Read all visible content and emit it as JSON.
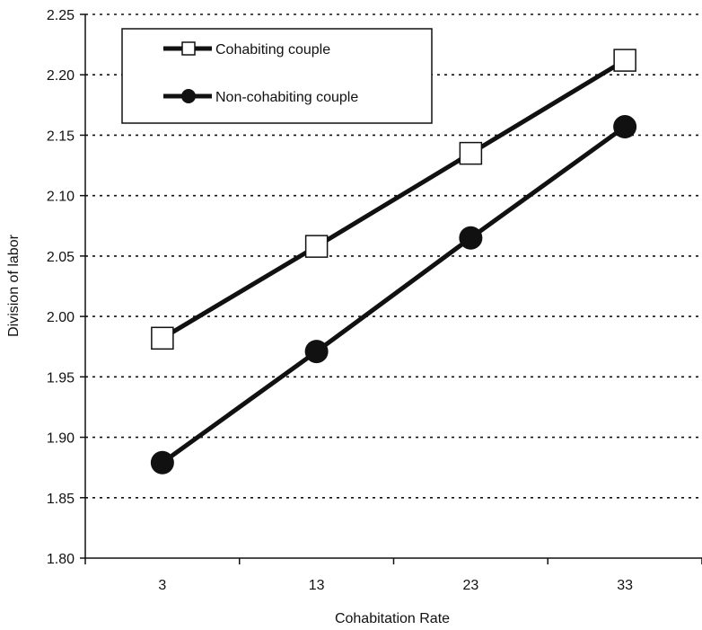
{
  "chart_data": {
    "type": "line",
    "title": "",
    "xlabel": "Cohabitation Rate",
    "ylabel": "Division of labor",
    "categories": [
      "3",
      "13",
      "23",
      "33"
    ],
    "ylim": [
      1.8,
      2.25
    ],
    "yticks": [
      "1.80",
      "1.85",
      "1.90",
      "1.95",
      "2.00",
      "2.05",
      "2.10",
      "2.15",
      "2.20",
      "2.25"
    ],
    "grid": "horizontal dotted",
    "legend": "top-left",
    "series": [
      {
        "name": "Cohabiting couple",
        "marker": "open-square",
        "values": [
          1.982,
          2.058,
          2.135,
          2.212
        ]
      },
      {
        "name": "Non-cohabiting couple",
        "marker": "filled-circle",
        "values": [
          1.879,
          1.971,
          2.065,
          2.157
        ]
      }
    ]
  }
}
